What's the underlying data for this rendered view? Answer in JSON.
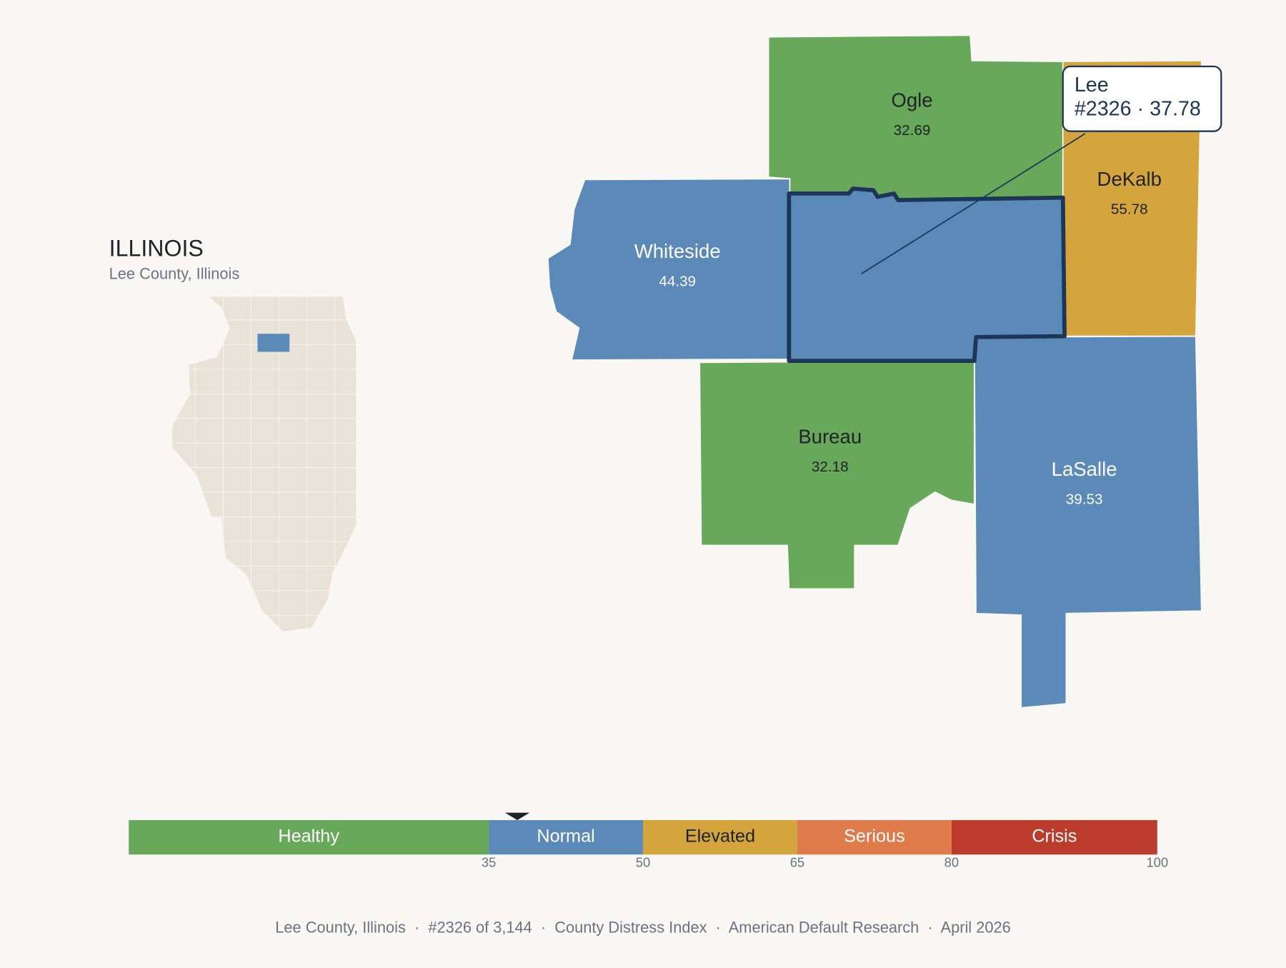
{
  "state": {
    "title": "ILLINOIS",
    "subtitle": "Lee County, Illinois"
  },
  "counties": [
    {
      "name": "Ogle",
      "value": 32.69
    },
    {
      "name": "DeKalb",
      "value": 55.78
    },
    {
      "name": "Whiteside",
      "value": 44.39
    },
    {
      "name": "Lee",
      "value": 37.78,
      "selected": true
    },
    {
      "name": "Bureau",
      "value": 32.18
    },
    {
      "name": "LaSalle",
      "value": 39.53
    }
  ],
  "tooltip": {
    "text": "#2326 · 37.78"
  },
  "scale": {
    "range": [
      0,
      100
    ],
    "ticks": [
      35,
      50,
      65,
      80,
      100
    ],
    "bands": [
      {
        "label": "Healthy",
        "from": 0,
        "to": 35,
        "color": "#67a85a",
        "text_color": "#ffffff"
      },
      {
        "label": "Normal",
        "from": 35,
        "to": 50,
        "color": "#5b89b8",
        "text_color": "#ffffff"
      },
      {
        "label": "Elevated",
        "from": 50,
        "to": 65,
        "color": "#d4a53c",
        "text_color": "#1f2328"
      },
      {
        "label": "Serious",
        "from": 65,
        "to": 80,
        "color": "#df7a4a",
        "text_color": "#ffffff"
      },
      {
        "label": "Crisis",
        "from": 80,
        "to": 100,
        "color": "#bb3c2c",
        "text_color": "#ffffff"
      }
    ]
  },
  "footer": "Lee County, Illinois  ·  #2326 of 3,144  ·  County Distress Index  ·  American Default Research  ·  April 2026"
}
